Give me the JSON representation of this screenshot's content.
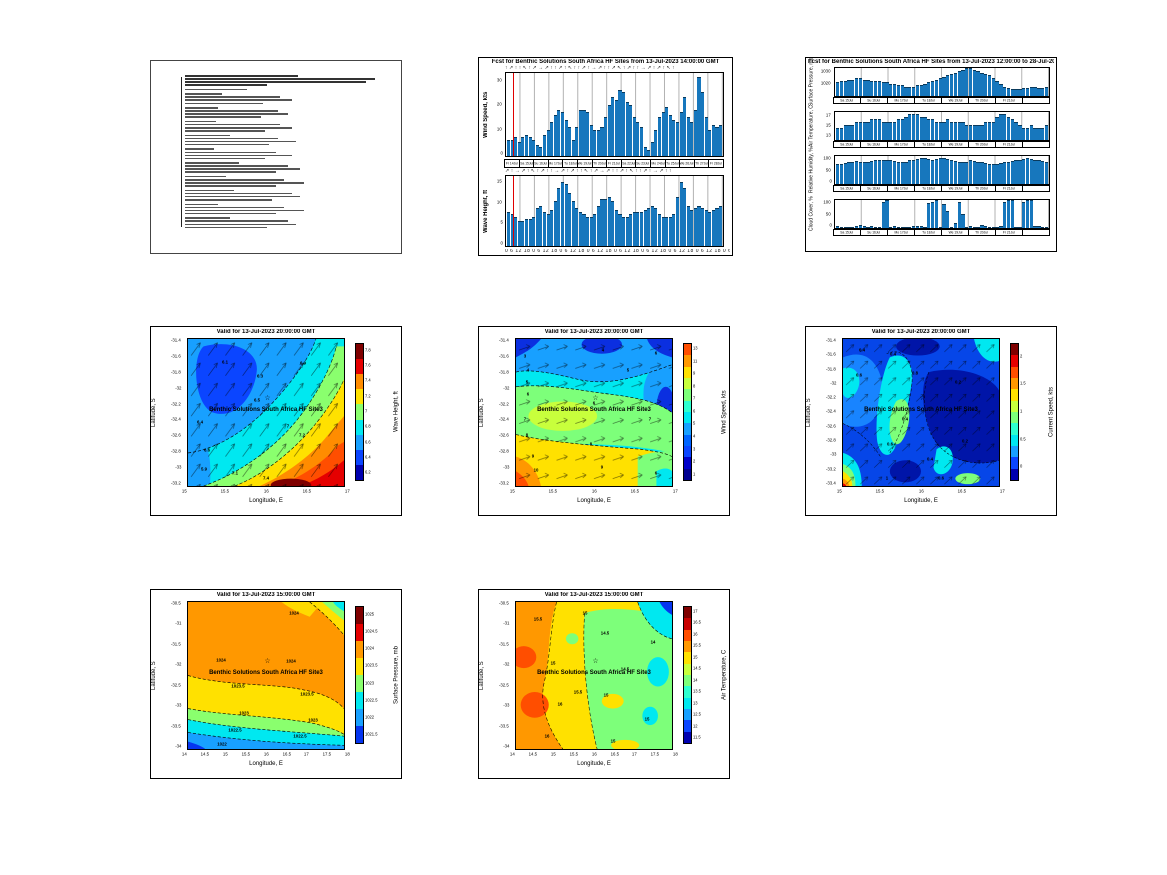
{
  "maps_common": {
    "site_label": "Benthic Solutions South Africa HF Site3",
    "star_glyph": "☆"
  },
  "document_panel": {
    "paragraphs": [
      [
        55,
        92,
        88,
        40
      ],
      [
        30
      ],
      [
        18,
        46,
        52,
        38
      ],
      [
        16,
        45,
        50,
        37
      ],
      [
        15,
        46,
        52,
        39
      ],
      [
        22,
        45,
        54,
        41
      ],
      [
        14,
        44,
        52,
        39
      ],
      [
        26,
        50,
        56,
        44
      ],
      [
        20,
        48,
        58,
        44
      ],
      [
        24,
        52,
        56,
        42
      ],
      [
        16,
        48,
        58,
        44
      ],
      [
        22,
        50,
        54,
        40
      ]
    ]
  },
  "chart_data": [
    {
      "panel": "wind-wave-forecast",
      "type": "bar",
      "title": "Fcst for Benthic Solutions South Africa HF Sites from 13-Jul-2023 14:00:00 GMT",
      "bar_color": "#1777bd",
      "marker_color": "#e00000",
      "arrows_top": "↑↗↑↑↖↑↗→↗↑↑↗↑↖↑↑↗↑→↗↑↑↗↖↑↗↑↑→↗↑↗↑↖↑",
      "arrows_mid": "↗↑→↗↑↖↑↗↑↑→↗↑↗↑↑↖↑↗→↗↑↑↗↑↖↑↑↗↑→↗↑↑",
      "days": [
        "Fr 14Jul",
        "Sa 15Jul",
        "Su 16Jul",
        "Mo 17Jul",
        "Tu 18Jul",
        "We 19Jul",
        "Th 20Jul",
        "Fr 21Jul",
        "Sa 22Jul",
        "Su 23Jul",
        "Mo 24Jul",
        "Tu 25Jul",
        "We 26Jul",
        "Th 27Jul",
        "Fr 28Jul"
      ],
      "hours": "0 6 12 18 0 6 12 18 0 6 12 18 0 6 12 18 0 6 12 18 0 6 12 18 0 6 12 18 0 6 12 18 0 6 12 18 0 6 12 18 0 6 12 18 0 6 12 18 0 6 12 18 0 6 12 18 0 6 12 18",
      "wind": {
        "label": "Wind Speed, kts",
        "yticks": [
          "30",
          "20",
          "10",
          "0"
        ],
        "min": 0,
        "max": 33,
        "values": [
          6,
          6,
          7,
          5,
          7,
          8,
          7,
          6,
          4,
          3,
          8,
          10,
          13,
          16,
          18,
          17,
          14,
          11,
          6,
          11,
          18,
          18,
          17,
          12,
          10,
          10,
          11,
          15,
          20,
          23,
          22,
          26,
          25,
          21,
          20,
          15,
          13,
          11,
          3,
          2,
          5,
          10,
          15,
          17,
          19,
          16,
          14,
          13,
          17,
          23,
          15,
          13,
          18,
          31,
          25,
          15,
          10,
          12,
          11,
          12
        ]
      },
      "wave": {
        "label": "Wave Height, ft",
        "yticks": [
          "15",
          "10",
          "5",
          "0"
        ],
        "min": 0,
        "max": 16,
        "values": [
          7.5,
          7,
          6.5,
          5.5,
          5.5,
          6,
          6,
          6.5,
          8.5,
          9,
          7.5,
          7,
          8,
          10,
          13,
          14.5,
          14,
          12,
          10,
          8.5,
          7.5,
          7,
          6.5,
          6.5,
          7,
          9,
          10.5,
          10.5,
          11,
          10,
          8,
          7,
          6.5,
          6.5,
          7,
          7.5,
          7.5,
          7.5,
          8,
          8.5,
          9,
          8.5,
          7,
          6.5,
          6.5,
          6.5,
          7,
          11,
          14.5,
          13,
          9,
          8,
          8.5,
          9,
          8.5,
          8,
          7.5,
          8,
          8.5,
          9
        ]
      }
    },
    {
      "panel": "met-summary",
      "type": "bar",
      "title": "Fcst for Benthic Solutions South Africa HF Sites from 13-Jul-2023 12:00:00 to 28-Jul-2023 12:00:00 GMT",
      "days": [
        "Sa 15Jul",
        "Su 16Jul",
        "Mo 17Jul",
        "Tu 18Jul",
        "We 19Jul",
        "Th 20Jul",
        "Fr 21Jul",
        ""
      ],
      "pressure": {
        "label": "Surface Pressure, mb",
        "yticks": [
          "1030",
          "1020"
        ],
        "min": 1012,
        "max": 1032,
        "values": [
          1021,
          1022,
          1022,
          1023,
          1023,
          1024,
          1024,
          1023,
          1023,
          1022,
          1022,
          1022,
          1021,
          1021,
          1020,
          1020,
          1019,
          1019,
          1018,
          1018,
          1018,
          1019,
          1019,
          1020,
          1021,
          1022,
          1023,
          1024,
          1025,
          1026,
          1027,
          1028,
          1029,
          1030,
          1031,
          1031,
          1030,
          1029,
          1028,
          1027,
          1026,
          1024,
          1022,
          1020,
          1018,
          1017,
          1016,
          1016,
          1016,
          1017,
          1017,
          1018,
          1018,
          1017,
          1017,
          1018
        ]
      },
      "temperature": {
        "label": "Air Temperature, C",
        "yticks": [
          "17",
          "15",
          "13"
        ],
        "min": 12.5,
        "max": 17.5,
        "values": [
          14.5,
          14.5,
          15,
          15,
          15,
          15.5,
          15.5,
          15.5,
          15.5,
          16,
          16,
          16,
          15.5,
          15.5,
          15.5,
          15.5,
          16,
          16,
          16.5,
          17,
          17,
          17,
          16.5,
          16.5,
          16,
          16,
          15.5,
          15.5,
          15.5,
          16,
          15.5,
          15.5,
          15.5,
          15.5,
          15,
          15,
          15,
          15,
          15,
          15.5,
          15.5,
          15.5,
          16.5,
          17,
          17,
          16.5,
          16,
          15.5,
          15,
          14.5,
          14.5,
          15,
          14.5,
          14.5,
          14.5,
          15
        ]
      },
      "humidity": {
        "label": "Relative Humidity, %",
        "yticks": [
          "100",
          "50",
          "0"
        ],
        "min": 0,
        "max": 105,
        "values": [
          70,
          72,
          75,
          78,
          80,
          82,
          80,
          78,
          80,
          82,
          85,
          85,
          88,
          88,
          85,
          82,
          80,
          78,
          80,
          85,
          88,
          90,
          92,
          92,
          90,
          88,
          90,
          92,
          92,
          90,
          85,
          82,
          80,
          78,
          80,
          85,
          82,
          80,
          78,
          75,
          72,
          70,
          72,
          75,
          78,
          80,
          82,
          85,
          88,
          90,
          92,
          90,
          88,
          85,
          82,
          80
        ]
      },
      "cloud": {
        "label": "Cloud Cover, %",
        "yticks": [
          "100",
          "50",
          "0"
        ],
        "min": 0,
        "max": 105,
        "values": [
          3,
          0,
          0,
          0,
          0,
          5,
          6,
          2,
          0,
          3,
          0,
          0,
          95,
          100,
          0,
          2,
          0,
          0,
          0,
          0,
          4,
          5,
          2,
          0,
          90,
          95,
          100,
          0,
          85,
          60,
          0,
          15,
          95,
          50,
          0,
          5,
          0,
          0,
          8,
          2,
          0,
          0,
          0,
          3,
          95,
          100,
          100,
          0,
          0,
          95,
          100,
          100,
          2,
          5,
          0,
          0
        ]
      }
    },
    {
      "panel": "wave-height-map",
      "type": "heatmap",
      "title": "Valid for 13-Jul-2023 20:00:00 GMT",
      "xlabel": "Longitude, E",
      "ylabel": "Latitude, S",
      "xticks": [
        "15",
        "15.5",
        "16",
        "16.5",
        "17"
      ],
      "yticks": [
        "-31.4",
        "-31.6",
        "-31.8",
        "-32",
        "-32.2",
        "-32.4",
        "-32.6",
        "-32.8",
        "-33",
        "-33.2"
      ],
      "site_label": "Benthic Solutions South Africa HF Site3",
      "colorbar": {
        "label": "Wave Height, ft",
        "ticks": [
          "7.8",
          "7.6",
          "7.4",
          "7.2",
          "7",
          "6.8",
          "6.6",
          "6.4",
          "6.2"
        ],
        "colors": [
          "#7f0000",
          "#e50000",
          "#ff8c00",
          "#ffe100",
          "#8aff6e",
          "#00e8f0",
          "#18a0ff",
          "#0b45ff",
          "#0000b0"
        ]
      },
      "contour_labels": [
        {
          "t": "6.1",
          "x": 24,
          "y": 16
        },
        {
          "t": "6.3",
          "x": 46,
          "y": 26
        },
        {
          "t": "6.9",
          "x": 74,
          "y": 17
        },
        {
          "t": "6.5",
          "x": 44,
          "y": 42
        },
        {
          "t": "6.4",
          "x": 8,
          "y": 57
        },
        {
          "t": "7",
          "x": 64,
          "y": 60
        },
        {
          "t": "7.2",
          "x": 73,
          "y": 66
        },
        {
          "t": "6.6",
          "x": 12,
          "y": 76
        },
        {
          "t": "5.9",
          "x": 10,
          "y": 89
        },
        {
          "t": "7.1",
          "x": 30,
          "y": 92
        },
        {
          "t": "7.4",
          "x": 50,
          "y": 95
        }
      ]
    },
    {
      "panel": "wind-speed-map",
      "type": "heatmap",
      "title": "Valid for 13-Jul-2023 20:00:00 GMT",
      "xlabel": "Longitude, E",
      "ylabel": "Latitude, S",
      "xticks": [
        "15",
        "15.5",
        "16",
        "16.5",
        "17"
      ],
      "yticks": [
        "-31.4",
        "-31.6",
        "-31.8",
        "-32",
        "-32.2",
        "-32.4",
        "-32.6",
        "-32.8",
        "-33",
        "-33.2"
      ],
      "site_label": "Benthic Solutions South Africa HF Site3",
      "colorbar": {
        "label": "Wind Speed, kts",
        "ticks": [
          "13",
          "11",
          "9",
          "8",
          "7",
          "6",
          "5",
          "4",
          "3",
          "2",
          "1"
        ],
        "colors": [
          "#ff4e00",
          "#ff9800",
          "#ffe100",
          "#c8ff3c",
          "#7dff7a",
          "#2effd0",
          "#00e8f0",
          "#18a0ff",
          "#0064ff",
          "#0b45ff",
          "#0000c8",
          "#000090"
        ]
      },
      "contour_labels": [
        {
          "t": "4",
          "x": 56,
          "y": 8
        },
        {
          "t": "3",
          "x": 6,
          "y": 12
        },
        {
          "t": "6",
          "x": 90,
          "y": 10
        },
        {
          "t": "4",
          "x": 8,
          "y": 22
        },
        {
          "t": "5",
          "x": 7,
          "y": 30
        },
        {
          "t": "5",
          "x": 72,
          "y": 22
        },
        {
          "t": "6",
          "x": 8,
          "y": 38
        },
        {
          "t": "6",
          "x": 50,
          "y": 44
        },
        {
          "t": "7",
          "x": 6,
          "y": 55
        },
        {
          "t": "7",
          "x": 86,
          "y": 55
        },
        {
          "t": "8",
          "x": 7,
          "y": 66
        },
        {
          "t": "8",
          "x": 48,
          "y": 72
        },
        {
          "t": "9",
          "x": 11,
          "y": 80
        },
        {
          "t": "9",
          "x": 55,
          "y": 88
        },
        {
          "t": "10",
          "x": 13,
          "y": 90
        },
        {
          "t": "6",
          "x": 90,
          "y": 92
        }
      ]
    },
    {
      "panel": "current-speed-map",
      "type": "heatmap",
      "title": "Valid for 13-Jul-2023 20:00:00 GMT",
      "xlabel": "Longitude, E",
      "ylabel": "Latitude, S",
      "xticks": [
        "15",
        "15.5",
        "16",
        "16.5",
        "17"
      ],
      "yticks": [
        "-31.4",
        "-31.6",
        "-31.8",
        "-32",
        "-32.2",
        "-32.4",
        "-32.6",
        "-32.8",
        "-33",
        "-33.2",
        "-33.4"
      ],
      "site_label": "Benthic Solutions South Africa HF Site3",
      "colorbar": {
        "label": "Current Speed, kts",
        "ticks": [
          "2",
          "1.5",
          "1",
          "0.5",
          "0"
        ],
        "colors": [
          "#7f0000",
          "#e50000",
          "#ff4e00",
          "#ff9800",
          "#ffe100",
          "#c8ff3c",
          "#7dff7a",
          "#2effd0",
          "#00e8f0",
          "#18a0ff",
          "#0b45ff",
          "#0000b0"
        ]
      },
      "contour_labels": [
        {
          "t": "0.4",
          "x": 12,
          "y": 8
        },
        {
          "t": "0.4",
          "x": 32,
          "y": 11
        },
        {
          "t": "0.6",
          "x": 10,
          "y": 25
        },
        {
          "t": "0.8",
          "x": 46,
          "y": 24
        },
        {
          "t": "0.2",
          "x": 74,
          "y": 30
        },
        {
          "t": "0.4",
          "x": 40,
          "y": 55
        },
        {
          "t": "0.2",
          "x": 78,
          "y": 70
        },
        {
          "t": "0.6",
          "x": 30,
          "y": 72
        },
        {
          "t": "0.4",
          "x": 56,
          "y": 82
        },
        {
          "t": "1",
          "x": 28,
          "y": 95
        },
        {
          "t": "0.6",
          "x": 63,
          "y": 95
        }
      ]
    },
    {
      "panel": "surface-pressure-map",
      "type": "heatmap",
      "title": "Valid for 13-Jul-2023 15:00:00 GMT",
      "xlabel": "Longitude, E",
      "ylabel": "Latitude, S",
      "xticks": [
        "14",
        "14.5",
        "15",
        "15.5",
        "16",
        "16.5",
        "17",
        "17.5",
        "18"
      ],
      "yticks": [
        "-30.5",
        "-31",
        "-31.5",
        "-32",
        "-32.5",
        "-33",
        "-33.5",
        "-34"
      ],
      "site_label": "Benthic Solutions South Africa HF Site3",
      "colorbar": {
        "label": "Surface Pressure, mb",
        "ticks": [
          "1025",
          "1024.5",
          "1024",
          "1023.5",
          "1023",
          "1022.5",
          "1022",
          "1021.5"
        ],
        "colors": [
          "#7f0000",
          "#e50000",
          "#ff9800",
          "#ffe100",
          "#8aff6e",
          "#00e8f0",
          "#18a0ff",
          "#0535f0"
        ]
      },
      "contour_labels": [
        {
          "t": "1024",
          "x": 68,
          "y": 8
        },
        {
          "t": "1024",
          "x": 21,
          "y": 40
        },
        {
          "t": "1024",
          "x": 66,
          "y": 41
        },
        {
          "t": "1023.5",
          "x": 32,
          "y": 58
        },
        {
          "t": "1023.5",
          "x": 76,
          "y": 63
        },
        {
          "t": "1023",
          "x": 36,
          "y": 76
        },
        {
          "t": "1023",
          "x": 80,
          "y": 81
        },
        {
          "t": "1022.5",
          "x": 30,
          "y": 88
        },
        {
          "t": "1022.5",
          "x": 72,
          "y": 92
        },
        {
          "t": "1022",
          "x": 22,
          "y": 97
        }
      ]
    },
    {
      "panel": "air-temperature-map",
      "type": "heatmap",
      "title": "Valid for 13-Jul-2023 15:00:00 GMT",
      "xlabel": "Longitude, E",
      "ylabel": "Latitude, S",
      "xticks": [
        "14",
        "14.5",
        "15",
        "15.5",
        "16",
        "16.5",
        "17",
        "17.5",
        "18"
      ],
      "yticks": [
        "-30.5",
        "-31",
        "-31.5",
        "-32",
        "-32.5",
        "-33",
        "-33.5",
        "-34"
      ],
      "site_label": "Benthic Solutions South Africa HF Site3",
      "colorbar": {
        "label": "Air Temperature, C",
        "ticks": [
          "17",
          "16.5",
          "16",
          "15.5",
          "15",
          "14.5",
          "14",
          "13.5",
          "13",
          "12.5",
          "12",
          "11.5"
        ],
        "colors": [
          "#7f0000",
          "#c80000",
          "#ff4e00",
          "#ff9800",
          "#ffe100",
          "#c8ff3c",
          "#7dff7a",
          "#2effd0",
          "#00e8f0",
          "#18a0ff",
          "#0b45ff",
          "#0000b0"
        ]
      },
      "contour_labels": [
        {
          "t": "15.5",
          "x": 14,
          "y": 12
        },
        {
          "t": "15",
          "x": 44,
          "y": 8
        },
        {
          "t": "14.5",
          "x": 57,
          "y": 22
        },
        {
          "t": "14",
          "x": 88,
          "y": 28
        },
        {
          "t": "15",
          "x": 24,
          "y": 42
        },
        {
          "t": "14.5",
          "x": 70,
          "y": 46
        },
        {
          "t": "15.5",
          "x": 40,
          "y": 62
        },
        {
          "t": "16",
          "x": 28,
          "y": 70
        },
        {
          "t": "15",
          "x": 58,
          "y": 64
        },
        {
          "t": "15",
          "x": 84,
          "y": 80
        },
        {
          "t": "16",
          "x": 20,
          "y": 92
        },
        {
          "t": "15",
          "x": 62,
          "y": 95
        }
      ]
    }
  ]
}
